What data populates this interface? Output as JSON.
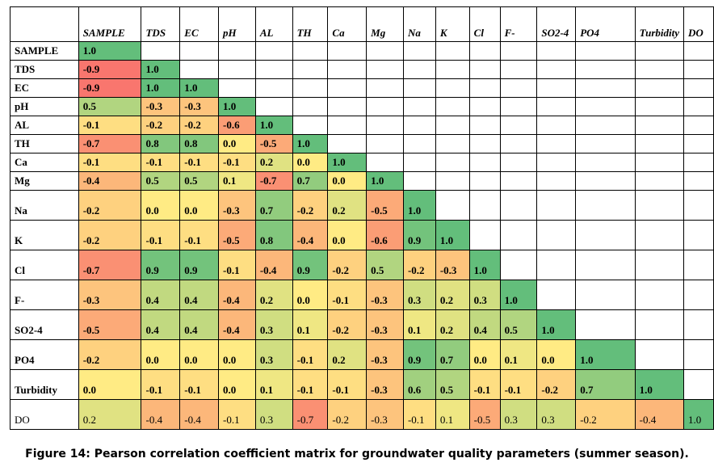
{
  "caption": "Figure 14: Pearson correlation coefficient matrix for groundwater quality parameters (summer season).",
  "header_headers": [
    "SAMPLE",
    "TDS",
    "EC",
    "pH",
    "AL",
    "TH",
    "Ca",
    "Mg",
    "Na",
    "K",
    "Cl",
    "F-",
    "SO2-4",
    "PO4",
    "Turbidity",
    "DO"
  ],
  "rows": [
    {
      "label": "SAMPLE",
      "values": [
        "1.0"
      ]
    },
    {
      "label": "TDS",
      "values": [
        "-0.9",
        "1.0"
      ]
    },
    {
      "label": "EC",
      "values": [
        "-0.9",
        "1.0",
        "1.0"
      ]
    },
    {
      "label": "pH",
      "values": [
        "0.5",
        "-0.3",
        "-0.3",
        "1.0"
      ]
    },
    {
      "label": "AL",
      "values": [
        "-0.1",
        "-0.2",
        "-0.2",
        "-0.6",
        "1.0"
      ]
    },
    {
      "label": "TH",
      "values": [
        "-0.7",
        "0.8",
        "0.8",
        "0.0",
        "-0.5",
        "1.0"
      ]
    },
    {
      "label": "Ca",
      "values": [
        "-0.1",
        "-0.1",
        "-0.1",
        "-0.1",
        "0.2",
        "0.0",
        "1.0"
      ]
    },
    {
      "label": "Mg",
      "values": [
        "-0.4",
        "0.5",
        "0.5",
        "0.1",
        "-0.7",
        "0.7",
        "0.0",
        "1.0"
      ]
    },
    {
      "label": "Na",
      "values": [
        "-0.2",
        "0.0",
        "0.0",
        "-0.3",
        "0.7",
        "-0.2",
        "0.2",
        "-0.5",
        "1.0"
      ]
    },
    {
      "label": "K",
      "values": [
        "-0.2",
        "-0.1",
        "-0.1",
        "-0.5",
        "0.8",
        "-0.4",
        "0.0",
        "-0.6",
        "0.9",
        "1.0"
      ]
    },
    {
      "label": "Cl",
      "values": [
        "-0.7",
        "0.9",
        "0.9",
        "-0.1",
        "-0.4",
        "0.9",
        "-0.2",
        "0.5",
        "-0.2",
        "-0.3",
        "1.0"
      ]
    },
    {
      "label": "F-",
      "values": [
        "-0.3",
        "0.4",
        "0.4",
        "-0.4",
        "0.2",
        "0.0",
        "-0.1",
        "-0.3",
        "0.3",
        "0.2",
        "0.3",
        "1.0"
      ]
    },
    {
      "label": "SO2-4",
      "values": [
        "-0.5",
        "0.4",
        "0.4",
        "-0.4",
        "0.3",
        "0.1",
        "-0.2",
        "-0.3",
        "0.1",
        "0.2",
        "0.4",
        "0.5",
        "1.0"
      ]
    },
    {
      "label": "PO4",
      "values": [
        "-0.2",
        "0.0",
        "0.0",
        "0.0",
        "0.3",
        "-0.1",
        "0.2",
        "-0.3",
        "0.9",
        "0.7",
        "0.0",
        "0.1",
        "0.0",
        "1.0"
      ]
    },
    {
      "label": "Turbidity",
      "values": [
        "0.0",
        "-0.1",
        "-0.1",
        "0.0",
        "0.1",
        "-0.1",
        "-0.1",
        "-0.3",
        "0.6",
        "0.5",
        "-0.1",
        "-0.1",
        "-0.2",
        "0.7",
        "1.0"
      ]
    },
    {
      "label": "DO",
      "values": [
        "0.2",
        "-0.4",
        "-0.4",
        "-0.1",
        "0.3",
        "-0.7",
        "-0.2",
        "-0.3",
        "-0.1",
        "0.1",
        "-0.5",
        "0.3",
        "0.3",
        "-0.2",
        "-0.4",
        "1.0"
      ]
    }
  ],
  "colors": {
    "positive": "#63be7b",
    "neutral": "#ffeb84",
    "negative": "#f8696b"
  }
}
